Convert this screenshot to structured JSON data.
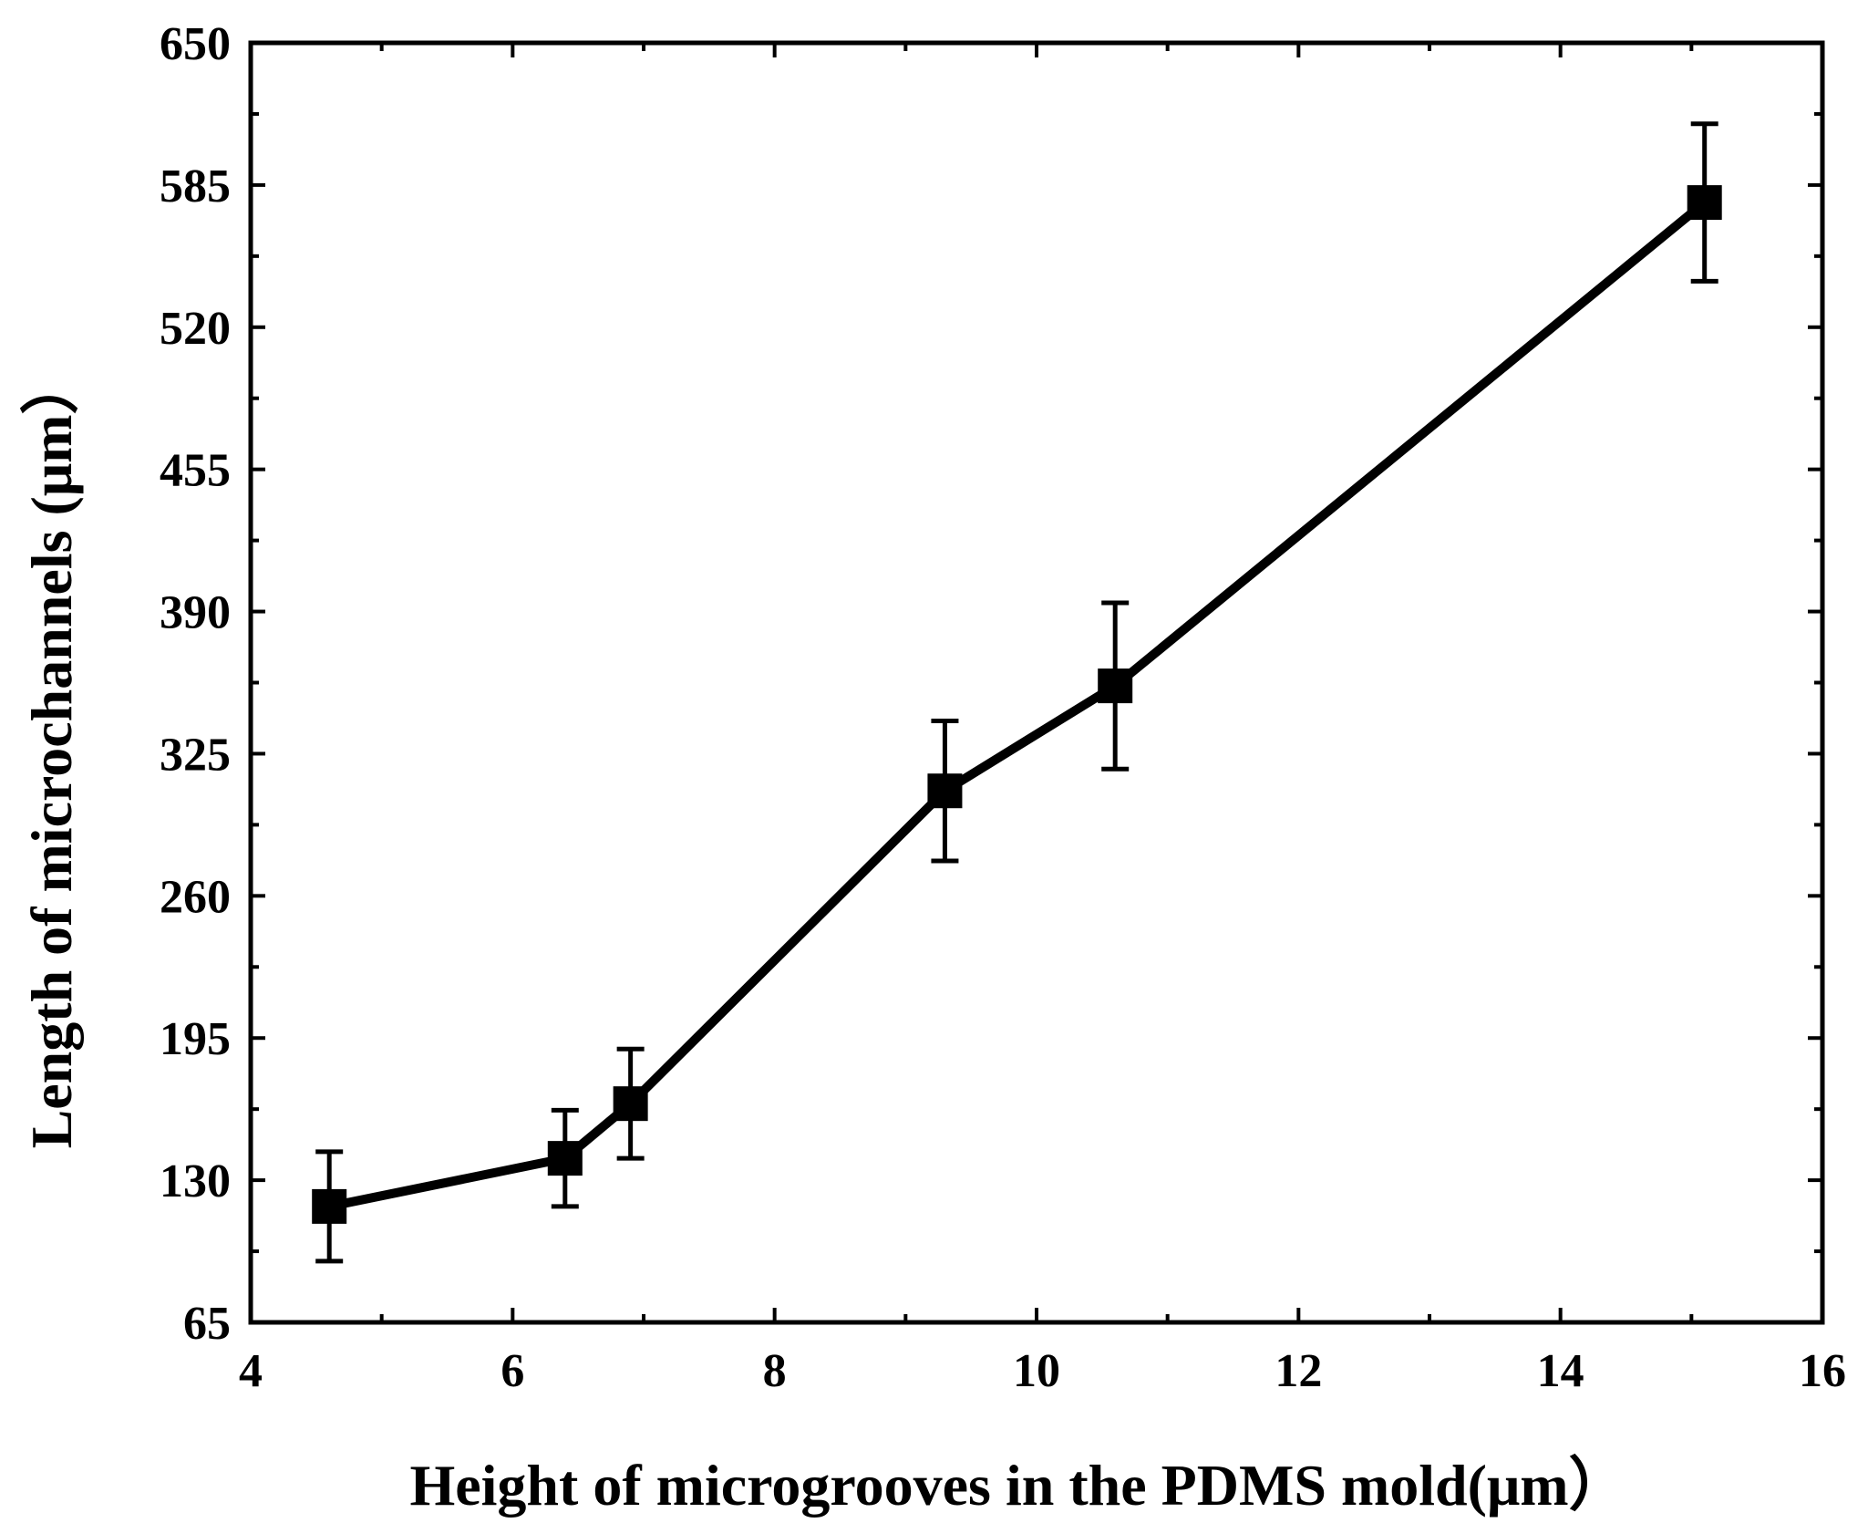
{
  "chart_data": {
    "type": "line",
    "title": "",
    "xlabel": "Height of microgrooves in the PDMS mold(μm）",
    "ylabel": "Length of  microchannels (μm）",
    "xlim": [
      4,
      16
    ],
    "ylim": [
      65,
      650
    ],
    "x_ticks": [
      4,
      6,
      8,
      10,
      12,
      14,
      16
    ],
    "y_ticks": [
      65,
      130,
      195,
      260,
      325,
      390,
      455,
      520,
      585,
      650
    ],
    "grid": false,
    "legend": "none",
    "marker": "square",
    "color": "#000000",
    "series": [
      {
        "name": "Length of microchannels",
        "x": [
          4.6,
          6.4,
          6.9,
          9.3,
          10.6,
          15.1
        ],
        "y": [
          118,
          140,
          165,
          308,
          356,
          577
        ],
        "error": [
          25,
          22,
          25,
          32,
          38,
          36
        ]
      }
    ]
  }
}
